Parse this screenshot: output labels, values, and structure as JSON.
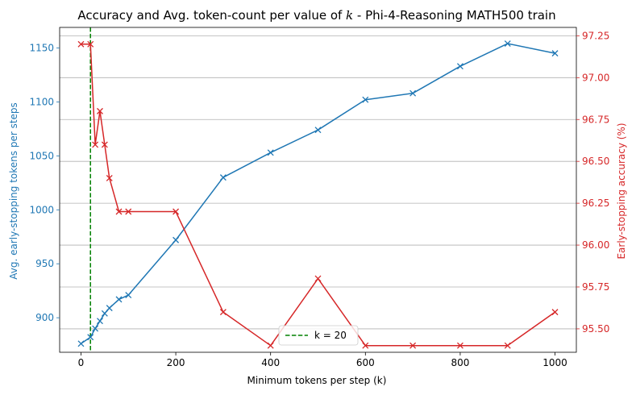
{
  "chart_data": {
    "type": "line",
    "title": "Accuracy and Avg. token-count per value of ",
    "title_k": "k",
    "title_suffix": " - Phi-4-Reasoning MATH500 train",
    "xlabel": "Minimum tokens per step (k)",
    "ylabel_left": "Avg. early-stopping tokens per steps",
    "ylabel_right": "Early-stopping accuracy (%)",
    "xlim": [
      -45,
      1045
    ],
    "ylim_left": [
      868,
      1169
    ],
    "ylim_right": [
      95.36,
      97.3
    ],
    "x_ticks": [
      0,
      200,
      400,
      600,
      800,
      1000
    ],
    "x_tick_labels": [
      "0",
      "200",
      "400",
      "600",
      "800",
      "1000"
    ],
    "y_left_ticks": [
      900,
      950,
      1000,
      1050,
      1100,
      1150
    ],
    "y_left_tick_labels": [
      "900",
      "950",
      "1000",
      "1050",
      "1100",
      "1150"
    ],
    "y_right_ticks": [
      95.5,
      95.75,
      96.0,
      96.25,
      96.5,
      96.75,
      97.0,
      97.25
    ],
    "y_right_tick_labels": [
      "95.50",
      "95.75",
      "96.00",
      "96.25",
      "96.50",
      "96.75",
      "97.00",
      "97.25"
    ],
    "grid": "horizontal lines at right-axis ticks",
    "legend": {
      "position": "bottom-center",
      "entries": [
        "k = 20"
      ]
    },
    "vline": {
      "x": 20,
      "label": "k = 20",
      "color": "#008000"
    },
    "series": [
      {
        "axis": "left",
        "color": "#1f77b4",
        "marker": "x",
        "x": [
          0,
          20,
          30,
          40,
          50,
          60,
          80,
          100,
          200,
          300,
          400,
          500,
          600,
          700,
          800,
          900,
          1000
        ],
        "values": [
          876,
          882,
          890,
          897,
          904,
          909,
          917,
          921,
          972,
          1030,
          1053,
          1074,
          1102,
          1108,
          1133,
          1154,
          1145
        ]
      },
      {
        "axis": "right",
        "color": "#d62728",
        "marker": "x",
        "x": [
          0,
          20,
          30,
          40,
          50,
          60,
          80,
          100,
          200,
          300,
          400,
          500,
          600,
          700,
          800,
          900,
          1000
        ],
        "values": [
          97.2,
          97.2,
          96.6,
          96.8,
          96.6,
          96.4,
          96.2,
          96.2,
          96.2,
          95.6,
          95.4,
          95.8,
          95.4,
          95.4,
          95.4,
          95.4,
          95.6
        ]
      }
    ]
  }
}
